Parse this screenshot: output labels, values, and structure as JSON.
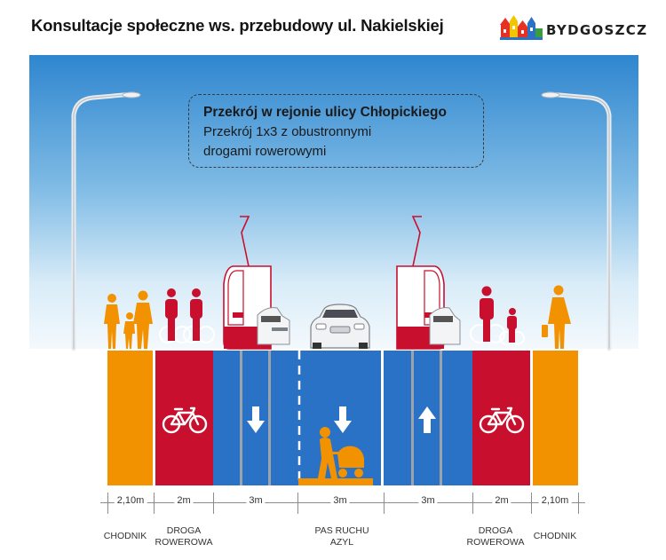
{
  "header": {
    "title": "Konsultacje społeczne ws. przebudowy ul. Nakielskiej",
    "logo_text": "BYDGOSZCZ"
  },
  "infobox": {
    "heading": "Przekrój w rejonie ulicy Chłopickiego",
    "line1": "Przekrój 1x3 z obustronnymi",
    "line2": "drogami rowerowymi"
  },
  "widths": {
    "sidewalk_left": "2,10m",
    "bike_left": "2m",
    "lane_1": "3m",
    "lane_2": "3m",
    "lane_3": "3m",
    "bike_right": "2m",
    "sidewalk_right": "2,10m"
  },
  "names": {
    "sidewalk_left": "CHODNIK",
    "bike_left_1": "DROGA",
    "bike_left_2": "ROWEROWA",
    "lane_center_1": "PAS RUCHU",
    "lane_center_2": "AZYL",
    "bike_right_1": "DROGA",
    "bike_right_2": "ROWEROWA",
    "sidewalk_right": "CHODNIK"
  },
  "colors": {
    "sidewalk": "#f39200",
    "bike_path": "#c8102e",
    "roadway": "#2a72c6",
    "tram_track": "#9ca3ad",
    "figures": "#f39200"
  },
  "icons": {
    "bicycle": "bicycle-icon",
    "arrow_down": "arrow-down-icon",
    "arrow_up": "arrow-up-icon",
    "pedestrian_stroller": "stroller-icon"
  }
}
